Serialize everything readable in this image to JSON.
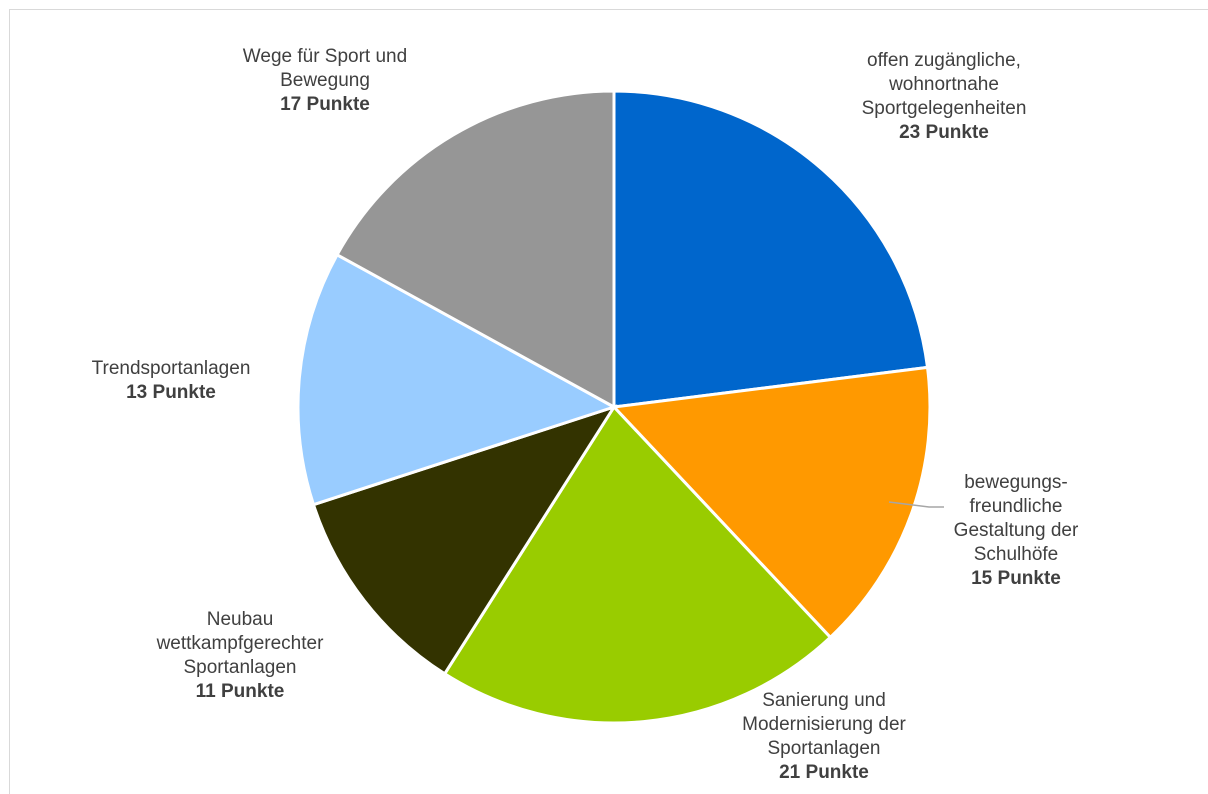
{
  "chart_data": {
    "type": "pie",
    "title": "",
    "unit": "Punkte",
    "slices": [
      {
        "label_lines": [
          "offen zugängliche,",
          "wohnortnahe",
          "Sportgelegenheiten"
        ],
        "value": 23,
        "value_label": "23 Punkte",
        "color": "#0066cc"
      },
      {
        "label_lines": [
          "bewegungs-",
          "freundliche",
          "Gestaltung der",
          "Schulhöfe"
        ],
        "value": 15,
        "value_label": "15 Punkte",
        "color": "#ff9900"
      },
      {
        "label_lines": [
          "Sanierung und",
          "Modernisierung der",
          "Sportanlagen"
        ],
        "value": 21,
        "value_label": "21 Punkte",
        "color": "#99cc00"
      },
      {
        "label_lines": [
          "Neubau",
          "wettkampfgerechter",
          "Sportanlagen"
        ],
        "value": 11,
        "value_label": "11 Punkte",
        "color": "#333300"
      },
      {
        "label_lines": [
          "Trendsportanlagen"
        ],
        "value": 13,
        "value_label": "13 Punkte",
        "color": "#99ccff"
      },
      {
        "label_lines": [
          "Wege für Sport und",
          "Bewegung"
        ],
        "value": 17,
        "value_label": "17 Punkte",
        "color": "#969696"
      }
    ],
    "legend": "none"
  }
}
